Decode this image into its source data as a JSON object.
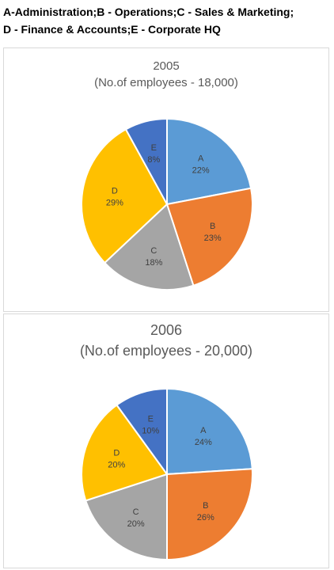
{
  "legend": {
    "line1": "A-Administration;B - Operations;C - Sales & Marketing;",
    "line2": "D - Finance & Accounts;E - Corporate HQ"
  },
  "colors": {
    "A": "#5b9bd5",
    "B": "#ed7d31",
    "C": "#a5a5a5",
    "D": "#ffc000",
    "E": "#4472c4"
  },
  "chart_data": [
    {
      "type": "pie",
      "title": "2005",
      "subtitle": "(No.of employees - 18,000)",
      "categories": [
        "A",
        "B",
        "C",
        "D",
        "E"
      ],
      "values": [
        22,
        23,
        18,
        29,
        8
      ],
      "value_labels": [
        "22%",
        "23%",
        "18%",
        "29%",
        "8%"
      ]
    },
    {
      "type": "pie",
      "title": "2006",
      "subtitle": "(No.of employees - 20,000)",
      "categories": [
        "A",
        "B",
        "C",
        "D",
        "E"
      ],
      "values": [
        24,
        26,
        20,
        20,
        10
      ],
      "value_labels": [
        "24%",
        "26%",
        "20%",
        "20%",
        "10%"
      ]
    }
  ]
}
